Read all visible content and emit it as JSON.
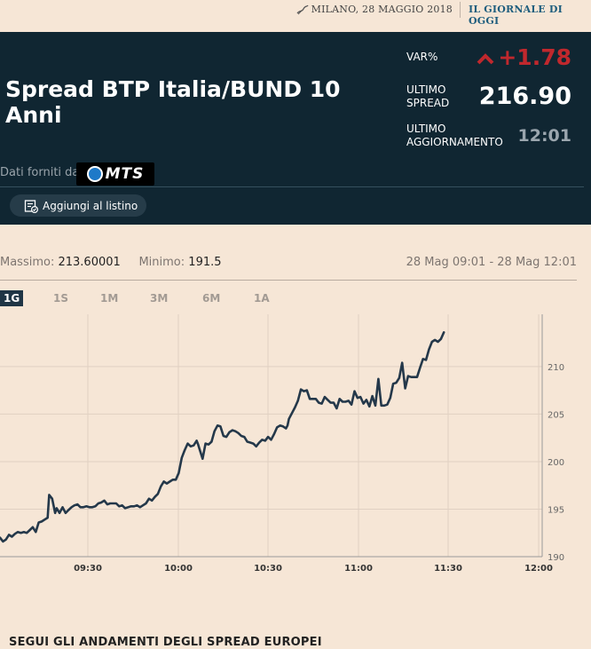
{
  "top": {
    "date": "MILANO, 28 MAGGIO 2018",
    "paper": "IL GIORNALE DI OGGI"
  },
  "panel": {
    "title": "Spread BTP Italia/BUND 10 Anni",
    "var_label": "VAR%",
    "var_value": "+1.78",
    "last_label_1": "ULTIMO",
    "last_label_2": "SPREAD",
    "last_value": "216.90",
    "updated_label_1": "ULTIMO",
    "updated_label_2": "AGGIORNAMENTO",
    "updated_value": "12:01",
    "provider_label": "Dati forniti da",
    "provider_logo": "MTS",
    "add_button": "Aggiungi al listino",
    "colors": {
      "background": "#102632",
      "negative": "#c0282d"
    }
  },
  "stats": {
    "max_label": "Massimo:",
    "max_value": "213.60001",
    "min_label": "Minimo:",
    "min_value": "191.5",
    "range": "28 Mag 09:01 - 28 Mag 12:01"
  },
  "tabs": [
    "1G",
    "1S",
    "1M",
    "3M",
    "6M",
    "1A"
  ],
  "active_tab": "1G",
  "chart_data": {
    "type": "line",
    "x_ticks": [
      "09:30",
      "10:00",
      "10:30",
      "11:00",
      "11:30",
      "12:00"
    ],
    "y_ticks": [
      "190",
      "195",
      "200",
      "205",
      "210"
    ],
    "ylim": [
      190,
      215.5
    ],
    "x_range_minutes": [
      0,
      182
    ],
    "grid": true,
    "line_color": "#24384a",
    "series": [
      {
        "values": [
          [
            0,
            192
          ],
          [
            1,
            191.6
          ],
          [
            2,
            191.8
          ],
          [
            3,
            192.3
          ],
          [
            4,
            192.1
          ],
          [
            5,
            192.4
          ],
          [
            6,
            192.6
          ],
          [
            7,
            192.5
          ],
          [
            8,
            192.6
          ],
          [
            9,
            192.5
          ],
          [
            10,
            192.8
          ],
          [
            11,
            193.1
          ],
          [
            12,
            192.6
          ],
          [
            13,
            193.6
          ],
          [
            14,
            193.7
          ],
          [
            15,
            193.9
          ],
          [
            16,
            194.1
          ],
          [
            16.5,
            196.5
          ],
          [
            17.5,
            196.1
          ],
          [
            18.5,
            194.6
          ],
          [
            19,
            195.1
          ],
          [
            20,
            194.6
          ],
          [
            21,
            195.2
          ],
          [
            22,
            194.6
          ],
          [
            23,
            194.9
          ],
          [
            24,
            195.2
          ],
          [
            25,
            195.4
          ],
          [
            26,
            195.5
          ],
          [
            27,
            195.2
          ],
          [
            28,
            195.2
          ],
          [
            29,
            195.3
          ],
          [
            30,
            195.2
          ],
          [
            31,
            195.2
          ],
          [
            32,
            195.3
          ],
          [
            33,
            195.6
          ],
          [
            34,
            195.7
          ],
          [
            35,
            195.9
          ],
          [
            36,
            195.5
          ],
          [
            37,
            195.6
          ],
          [
            38,
            195.6
          ],
          [
            39,
            195.6
          ],
          [
            40,
            195.3
          ],
          [
            41,
            195.4
          ],
          [
            42,
            195.1
          ],
          [
            43,
            195.2
          ],
          [
            44,
            195.3
          ],
          [
            45,
            195.3
          ],
          [
            46,
            195.4
          ],
          [
            47,
            195.2
          ],
          [
            48,
            195.4
          ],
          [
            49,
            195.6
          ],
          [
            50,
            196.1
          ],
          [
            51,
            195.9
          ],
          [
            52,
            196.3
          ],
          [
            53,
            196.6
          ],
          [
            54,
            197.4
          ],
          [
            55,
            197.9
          ],
          [
            56,
            197.7
          ],
          [
            57,
            197.9
          ],
          [
            58,
            198.1
          ],
          [
            59,
            198.1
          ],
          [
            60,
            198.8
          ],
          [
            61,
            200.4
          ],
          [
            62,
            201.2
          ],
          [
            63,
            201.9
          ],
          [
            64,
            201.6
          ],
          [
            65,
            201.7
          ],
          [
            66,
            202.2
          ],
          [
            66.5,
            201.8
          ],
          [
            67,
            201.3
          ],
          [
            68,
            200.3
          ],
          [
            69,
            201.9
          ],
          [
            70,
            201.8
          ],
          [
            71,
            202.1
          ],
          [
            72,
            203.2
          ],
          [
            73,
            203.8
          ],
          [
            74,
            203.7
          ],
          [
            75,
            202.7
          ],
          [
            76,
            202.6
          ],
          [
            77,
            203.1
          ],
          [
            78,
            203.3
          ],
          [
            79,
            203.2
          ],
          [
            80,
            203.0
          ],
          [
            81,
            202.7
          ],
          [
            82,
            202.6
          ],
          [
            83,
            202.1
          ],
          [
            84,
            202.0
          ],
          [
            85,
            201.9
          ],
          [
            86,
            201.6
          ],
          [
            87,
            202.0
          ],
          [
            88,
            202.3
          ],
          [
            89,
            202.2
          ],
          [
            90,
            202.6
          ],
          [
            91,
            202.3
          ],
          [
            92,
            202.9
          ],
          [
            93,
            203.6
          ],
          [
            94,
            203.8
          ],
          [
            95,
            203.7
          ],
          [
            96,
            203.5
          ],
          [
            96.5,
            203.8
          ],
          [
            97,
            204.5
          ],
          [
            98,
            205.1
          ],
          [
            99,
            205.7
          ],
          [
            100,
            206.4
          ],
          [
            101,
            207.6
          ],
          [
            102,
            207.4
          ],
          [
            103,
            207.5
          ],
          [
            104,
            206.6
          ],
          [
            105,
            206.6
          ],
          [
            106,
            206.6
          ],
          [
            107,
            206.2
          ],
          [
            108,
            206.1
          ],
          [
            109,
            206.8
          ],
          [
            110,
            206.5
          ],
          [
            111,
            206.2
          ],
          [
            112,
            206.2
          ],
          [
            113,
            205.6
          ],
          [
            114,
            206.6
          ],
          [
            115,
            206.3
          ],
          [
            116,
            206.3
          ],
          [
            117,
            206.4
          ],
          [
            118,
            206.0
          ],
          [
            119,
            207.4
          ],
          [
            120,
            206.7
          ],
          [
            121,
            206.8
          ],
          [
            122,
            206.1
          ],
          [
            123,
            206.5
          ],
          [
            124,
            205.8
          ],
          [
            125,
            206.9
          ],
          [
            126,
            205.9
          ],
          [
            127,
            208.7
          ],
          [
            128,
            205.9
          ],
          [
            129,
            205.9
          ],
          [
            130,
            206.0
          ],
          [
            131,
            206.7
          ],
          [
            132,
            208.2
          ],
          [
            133,
            208.3
          ],
          [
            134,
            208.8
          ],
          [
            135,
            210.4
          ],
          [
            136,
            207.7
          ],
          [
            137,
            209.0
          ],
          [
            138,
            208.9
          ],
          [
            139,
            208.9
          ],
          [
            140,
            208.9
          ],
          [
            141,
            209.9
          ],
          [
            142,
            210.8
          ],
          [
            143,
            210.7
          ],
          [
            144,
            211.8
          ],
          [
            145,
            212.6
          ],
          [
            146,
            212.8
          ],
          [
            147,
            212.6
          ],
          [
            148,
            212.9
          ],
          [
            149,
            213.6
          ]
        ]
      }
    ]
  },
  "footer": {
    "title": "SEGUI GLI ANDAMENTI DEGLI SPREAD EUROPEI"
  }
}
